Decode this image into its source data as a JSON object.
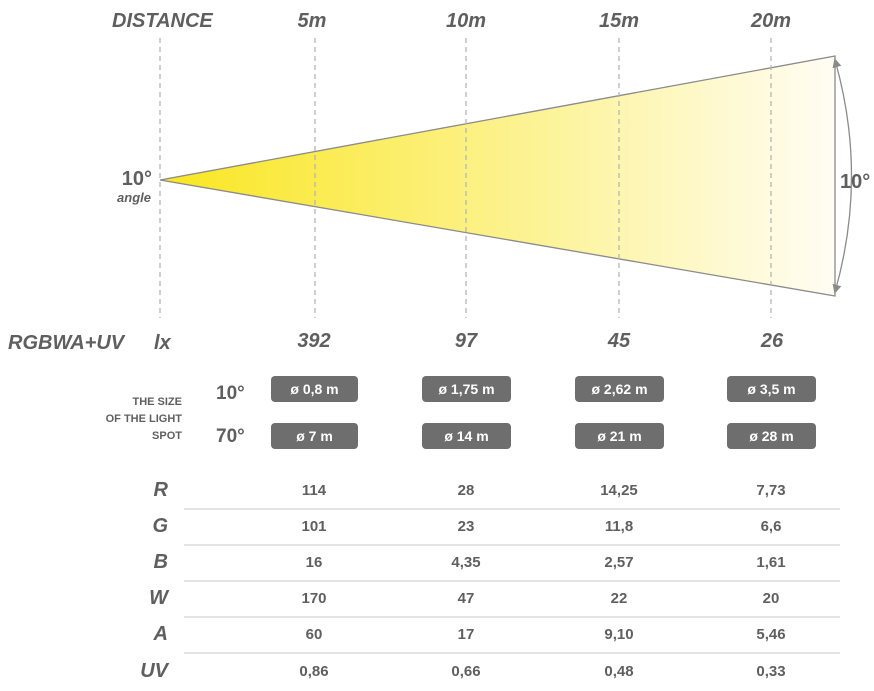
{
  "header": {
    "distance_label": "DISTANCE",
    "distances": [
      "5m",
      "10m",
      "15m",
      "20m"
    ]
  },
  "beam": {
    "angle_value": "10°",
    "angle_caption": "angle",
    "arc_label": "10°",
    "colors": {
      "start": "#f9e61f",
      "end": "#fffdf4",
      "outline": "#8a8a8a",
      "guide": "#b5b5b5"
    }
  },
  "lux": {
    "model_label": "RGBWA+UV",
    "unit_label": "lx",
    "values": [
      "392",
      "97",
      "45",
      "26"
    ]
  },
  "spot": {
    "caption_lines": [
      "THE SIZE",
      "OF THE LIGHT",
      "SPOT"
    ],
    "badge_color": "#6e6e6e",
    "rows": [
      {
        "angle": "10°",
        "sizes": [
          "ø 0,8 m",
          "ø 1,75 m",
          "ø 2,62 m",
          "ø 3,5 m"
        ]
      },
      {
        "angle": "70°",
        "sizes": [
          "ø 7 m",
          "ø 14 m",
          "ø 21 m",
          "ø 28 m"
        ]
      }
    ]
  },
  "channels": {
    "rows": [
      {
        "label": "R",
        "values": [
          "114",
          "28",
          "14,25",
          "7,73"
        ]
      },
      {
        "label": "G",
        "values": [
          "101",
          "23",
          "11,8",
          "6,6"
        ]
      },
      {
        "label": "B",
        "values": [
          "16",
          "4,35",
          "2,57",
          "1,61"
        ]
      },
      {
        "label": "W",
        "values": [
          "170",
          "47",
          "22",
          "20"
        ]
      },
      {
        "label": "A",
        "values": [
          "60",
          "17",
          "9,10",
          "5,46"
        ]
      },
      {
        "label": "UV",
        "values": [
          "0,86",
          "0,66",
          "0,48",
          "0,33"
        ]
      }
    ]
  }
}
